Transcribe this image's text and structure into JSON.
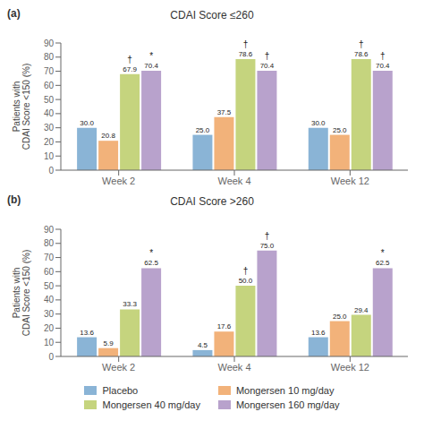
{
  "chart_data": [
    {
      "type": "bar",
      "title": "CDAI Score ≤260",
      "panel_label": "(a)",
      "categories": [
        "Week 2",
        "Week 4",
        "Week 12"
      ],
      "ylabel": "Patients with\nCDAI Score <150 (%)",
      "ylim": [
        0,
        90
      ],
      "yticks": [
        0,
        10,
        20,
        30,
        40,
        50,
        60,
        70,
        80,
        90
      ],
      "grid": false,
      "data_labels": true,
      "series": [
        {
          "name": "Placebo",
          "color": "#8ab4d6",
          "values": [
            30.0,
            25.0,
            30.0
          ],
          "value_labels": [
            "30.0",
            "25.0",
            "30.0"
          ]
        },
        {
          "name": "Mongersen 10 mg/day",
          "color": "#f2b27a",
          "values": [
            20.8,
            37.5,
            25.0
          ],
          "value_labels": [
            "20.8",
            "37.5",
            "25.0"
          ]
        },
        {
          "name": "Mongersen 40 mg/day",
          "color": "#c5d47e",
          "values": [
            67.9,
            78.6,
            78.6
          ],
          "value_labels": [
            "67.9",
            "78.6",
            "78.6"
          ],
          "annotations": [
            "†",
            "†",
            "†"
          ]
        },
        {
          "name": "Mongersen 160 mg/day",
          "color": "#b8a2cc",
          "values": [
            70.4,
            70.4,
            70.4
          ],
          "value_labels": [
            "70.4",
            "70.4",
            "70.4"
          ],
          "annotations": [
            "*",
            "†",
            "†"
          ]
        }
      ]
    },
    {
      "type": "bar",
      "title": "CDAI Score >260",
      "panel_label": "(b)",
      "categories": [
        "Week 2",
        "Week 4",
        "Week 12"
      ],
      "ylabel": "Patients with\nCDAI Score <150 (%)",
      "ylim": [
        0,
        90
      ],
      "yticks": [
        0,
        10,
        20,
        30,
        40,
        50,
        60,
        70,
        80,
        90
      ],
      "grid": false,
      "data_labels": true,
      "legend": "bottom",
      "series": [
        {
          "name": "Placebo",
          "color": "#8ab4d6",
          "values": [
            13.6,
            4.5,
            13.6
          ],
          "value_labels": [
            "13.6",
            "4.5",
            "13.6"
          ]
        },
        {
          "name": "Mongersen 10 mg/day",
          "color": "#f2b27a",
          "values": [
            5.9,
            17.6,
            25.0
          ],
          "value_labels": [
            "5.9",
            "17.6",
            "25.0"
          ]
        },
        {
          "name": "Mongersen 40 mg/day",
          "color": "#c5d47e",
          "values": [
            33.3,
            50.0,
            29.4
          ],
          "value_labels": [
            "33.3",
            "50.0",
            "29.4"
          ],
          "annotations": [
            null,
            "†",
            null
          ]
        },
        {
          "name": "Mongersen 160 mg/day",
          "color": "#b8a2cc",
          "values": [
            62.5,
            75.0,
            62.5
          ],
          "value_labels": [
            "62.5",
            "75.0",
            "62.5"
          ],
          "annotations": [
            "*",
            "†",
            "*"
          ]
        }
      ]
    }
  ]
}
